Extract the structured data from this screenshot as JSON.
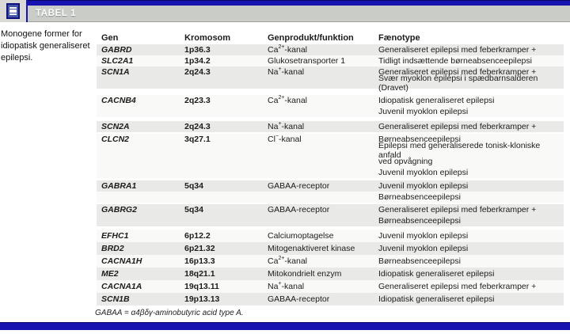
{
  "colors": {
    "navy": "#1713b0",
    "navy_dark": "#0a0668",
    "band_gray": "#c9ccc7",
    "band_border": "#9da09c",
    "left_block": "#d9d9d6",
    "icon_fill": "#4156a8",
    "icon_border": "#12127e",
    "stripe_gray": "#e9e9e7",
    "stripe_light": "#f9f9f7",
    "text": "#1c1c1c"
  },
  "header": {
    "label": "TABEL 1"
  },
  "caption": "Monogene former for idiopatisk generaliseret epilepsi.",
  "table": {
    "columns": [
      "Gen",
      "Kromosom",
      "Genprodukt/funktion",
      "Fænotype"
    ],
    "rows": [
      {
        "gen": "GABRD",
        "kromosom": "1p36.3",
        "produkt": "Ca^2+^-kanal",
        "faenotype": [
          "Generaliseret epilepsi med feberkramper +"
        ],
        "shade": "g",
        "gap": 1,
        "lh": 14
      },
      {
        "gen": "SLC2A1",
        "kromosom": "1p34.2",
        "produkt": "Glukosetransporter 1",
        "faenotype": [
          "Tidligt indsættende børneabsenceepilepsi"
        ],
        "shade": "w",
        "gap": 0,
        "lh": 14
      },
      {
        "gen": "SCN1A",
        "kromosom": "2q24.3",
        "produkt": "Na^+^-kanal",
        "faenotype": [
          "Generaliseret epilepsi med feberkramper +",
          "Svær myoklon epilepsi i spædbarnsalderen (Dravet)"
        ],
        "shade": "g",
        "gap": 0,
        "lh": 14
      },
      {
        "gen": "CACNB4",
        "kromosom": "2q23.3",
        "produkt": "Ca^2+^-kanal",
        "faenotype": [
          "Idiopatisk generaliseret epilepsi",
          "Juvenil myoklon epilepsi"
        ],
        "shade": "w",
        "gap": 8,
        "lh": 14
      },
      {
        "gen": "SCN2A",
        "kromosom": "2q24.3",
        "produkt": "Na^+^-kanal",
        "faenotype": [
          "Generaliseret epilepsi med feberkramper +"
        ],
        "shade": "g",
        "gap": 5,
        "lh": 14
      },
      {
        "gen": "CLCN2",
        "kromosom": "3q27.1",
        "produkt": "Cl^−^-kanal",
        "faenotype": [
          "Børneabsenceepilepsi",
          "Epilepsi med generaliserede tonisk-kloniske anfald",
          "ved opvågning",
          "Juvenil myoklon epilepsi"
        ],
        "shade": "w",
        "gap": 2,
        "lh": 14
      },
      {
        "gen": "GABRA1",
        "kromosom": "5q34",
        "produkt": "GABAA-receptor",
        "faenotype": [
          "Juvenil myoklon epilepsi",
          "Børneabsenceepilepsi"
        ],
        "shade": [
          "g",
          "w"
        ],
        "gap": 3,
        "lh": 14
      },
      {
        "gen": "GABRG2",
        "kromosom": "5q34",
        "produkt": "GABAA-receptor",
        "faenotype": [
          "Generaliseret epilepsi med feberkramper +",
          "Børneabsenceepilepsi"
        ],
        "shade": "g",
        "gap": 2,
        "lh": 14
      },
      {
        "gen": "EFHC1",
        "kromosom": "6p12.2",
        "produkt": "Calciumoptagelse",
        "faenotype": [
          "Juvenil myoklon epilepsi"
        ],
        "shade": "w",
        "gap": 4,
        "lh": 16
      },
      {
        "gen": "BRD2",
        "kromosom": "6p21.32",
        "produkt": "Mitogenaktiveret kinase",
        "faenotype": [
          "Juvenil myoklon epilepsi"
        ],
        "shade": "g",
        "gap": 0,
        "lh": 16
      },
      {
        "gen": "CACNA1H",
        "kromosom": "16p13.3",
        "produkt": "Ca^2+^-kanal",
        "faenotype": [
          "Børneabsenceepilepsi"
        ],
        "shade": "w",
        "gap": 0,
        "lh": 16
      },
      {
        "gen": "ME2",
        "kromosom": "18q21.1",
        "produkt": "Mitokondrielt enzym",
        "faenotype": [
          "Idiopatisk generaliseret epilepsi"
        ],
        "shade": "g",
        "gap": 0,
        "lh": 16
      },
      {
        "gen": "CACNA1A",
        "kromosom": "19q13.11",
        "produkt": "Na^+^-kanal",
        "faenotype": [
          "Generaliseret epilepsi med feberkramper +"
        ],
        "shade": "w",
        "gap": 0,
        "lh": 16
      },
      {
        "gen": "SCN1B",
        "kromosom": "19p13.13",
        "produkt": "GABAA-receptor",
        "faenotype": [
          "Idiopatisk generaliseret epilepsi"
        ],
        "shade": "g",
        "gap": 0,
        "lh": 16
      }
    ]
  },
  "footnote": "GABAA = α4βδγ-aminobutyric acid type A."
}
